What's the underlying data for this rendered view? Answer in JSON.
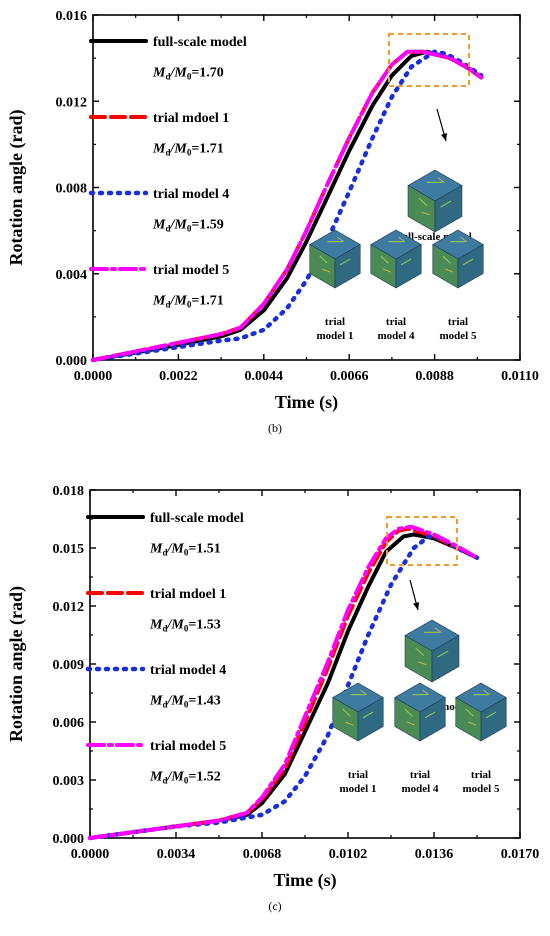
{
  "chart_data": [
    {
      "type": "line",
      "panel_label": "(b)",
      "xlabel": "Time (s)",
      "ylabel": "Rotation angle (rad)",
      "xlim": [
        0,
        0.011
      ],
      "ylim": [
        0,
        0.016
      ],
      "x_ticks": [
        "0.0000",
        "0.0022",
        "0.0044",
        "0.0066",
        "0.0088",
        "0.0110"
      ],
      "y_ticks": [
        "0.000",
        "0.004",
        "0.008",
        "0.012",
        "0.016"
      ],
      "series": [
        {
          "name": "full-scale model",
          "ratio_prefix": "M",
          "ratio_mid": "/M",
          "ratio_value": "=1.70",
          "color": "#000000",
          "style": "solid",
          "x": [
            0,
            0.0011,
            0.0022,
            0.0033,
            0.0038,
            0.0044,
            0.005,
            0.0055,
            0.006,
            0.0066,
            0.0072,
            0.0077,
            0.0082,
            0.0086,
            0.0092,
            0.0097,
            0.01
          ],
          "y": [
            0,
            0.00035,
            0.0007,
            0.0011,
            0.0014,
            0.0023,
            0.0038,
            0.0055,
            0.0074,
            0.0097,
            0.0118,
            0.0132,
            0.0141,
            0.0143,
            0.014,
            0.0135,
            0.0131
          ]
        },
        {
          "name": "trial mdoel 1",
          "ratio_prefix": "M",
          "ratio_mid": "/M",
          "ratio_value": "=1.71",
          "color": "#ff0000",
          "style": "dash",
          "x": [
            0,
            0.0011,
            0.0022,
            0.0033,
            0.0038,
            0.0044,
            0.005,
            0.0055,
            0.006,
            0.0066,
            0.0072,
            0.0077,
            0.0081,
            0.0085,
            0.0092,
            0.0097,
            0.01
          ],
          "y": [
            0,
            0.0004,
            0.0008,
            0.0012,
            0.0015,
            0.0026,
            0.0042,
            0.006,
            0.008,
            0.0103,
            0.0124,
            0.0137,
            0.0143,
            0.0143,
            0.014,
            0.0135,
            0.0131
          ]
        },
        {
          "name": "trial model 4",
          "ratio_prefix": "M",
          "ratio_mid": "/M",
          "ratio_value": "=1.59",
          "color": "#1a2fd9",
          "style": "dot",
          "x": [
            0,
            0.0011,
            0.0022,
            0.0033,
            0.0038,
            0.0044,
            0.005,
            0.0055,
            0.006,
            0.0066,
            0.0072,
            0.0077,
            0.0082,
            0.0088,
            0.0091,
            0.0095,
            0.01
          ],
          "y": [
            0,
            0.0003,
            0.0006,
            0.0009,
            0.001,
            0.0014,
            0.0024,
            0.0037,
            0.0054,
            0.0078,
            0.0103,
            0.0122,
            0.0136,
            0.0143,
            0.0142,
            0.0138,
            0.0132
          ]
        },
        {
          "name": "trial model 5",
          "ratio_prefix": "M",
          "ratio_mid": "/M",
          "ratio_value": "=1.71",
          "color": "#ff00ff",
          "style": "dashdot",
          "x": [
            0,
            0.0011,
            0.0022,
            0.0033,
            0.0038,
            0.0044,
            0.005,
            0.0055,
            0.006,
            0.0066,
            0.0072,
            0.0077,
            0.0081,
            0.0085,
            0.0092,
            0.0097,
            0.01
          ],
          "y": [
            0,
            0.0004,
            0.0008,
            0.0012,
            0.0015,
            0.0026,
            0.0042,
            0.006,
            0.008,
            0.0103,
            0.0124,
            0.0137,
            0.0143,
            0.0143,
            0.014,
            0.0135,
            0.0131
          ]
        }
      ],
      "inset_labels": {
        "full": "full-scale model",
        "trial1": [
          "trial",
          "model 1"
        ],
        "trial4": [
          "trial",
          "model 4"
        ],
        "trial5": [
          "trial",
          "model 5"
        ]
      }
    },
    {
      "type": "line",
      "panel_label": "(c)",
      "xlabel": "Time (s)",
      "ylabel": "Rotation angle (rad)",
      "xlim": [
        0,
        0.017
      ],
      "ylim": [
        0,
        0.018
      ],
      "x_ticks": [
        "0.0000",
        "0.0034",
        "0.0068",
        "0.0102",
        "0.0136",
        "0.0170"
      ],
      "y_ticks": [
        "0.000",
        "0.003",
        "0.006",
        "0.009",
        "0.012",
        "0.015",
        "0.018"
      ],
      "series": [
        {
          "name": "full-scale model",
          "ratio_prefix": "M",
          "ratio_mid": "/M",
          "ratio_value": "=1.51",
          "color": "#000000",
          "style": "solid",
          "x": [
            0,
            0.0017,
            0.0034,
            0.0051,
            0.0062,
            0.0068,
            0.0077,
            0.0085,
            0.0094,
            0.0102,
            0.011,
            0.0117,
            0.0124,
            0.0128,
            0.0136,
            0.0145,
            0.0153
          ],
          "y": [
            0,
            0.0003,
            0.0006,
            0.0009,
            0.0012,
            0.0018,
            0.0033,
            0.0055,
            0.008,
            0.0107,
            0.013,
            0.0148,
            0.0156,
            0.0157,
            0.0155,
            0.015,
            0.0145
          ]
        },
        {
          "name": "trial mdoel 1",
          "ratio_prefix": "M",
          "ratio_mid": "/M",
          "ratio_value": "=1.53",
          "color": "#ff0000",
          "style": "dash",
          "x": [
            0,
            0.0017,
            0.0034,
            0.0051,
            0.0062,
            0.0068,
            0.0077,
            0.0085,
            0.0094,
            0.0102,
            0.011,
            0.0117,
            0.0122,
            0.0126,
            0.0136,
            0.0145,
            0.0153
          ],
          "y": [
            0,
            0.0003,
            0.0006,
            0.0009,
            0.0013,
            0.002,
            0.0036,
            0.006,
            0.0088,
            0.0115,
            0.0137,
            0.0153,
            0.0159,
            0.016,
            0.0156,
            0.015,
            0.0145
          ]
        },
        {
          "name": "trial model 4",
          "ratio_prefix": "M",
          "ratio_mid": "/M",
          "ratio_value": "=1.43",
          "color": "#1a2fd9",
          "style": "dot",
          "x": [
            0,
            0.0017,
            0.0034,
            0.0051,
            0.0068,
            0.0077,
            0.0085,
            0.0094,
            0.0102,
            0.011,
            0.0119,
            0.0128,
            0.0134,
            0.0139,
            0.0145,
            0.0153
          ],
          "y": [
            0,
            0.0003,
            0.0006,
            0.0008,
            0.0012,
            0.0019,
            0.0032,
            0.0053,
            0.0079,
            0.0105,
            0.0131,
            0.015,
            0.0156,
            0.0155,
            0.015,
            0.0145
          ]
        },
        {
          "name": "trial model 5",
          "ratio_prefix": "M",
          "ratio_mid": "/M",
          "ratio_value": "=1.52",
          "color": "#ff00ff",
          "style": "dashdot",
          "x": [
            0,
            0.0017,
            0.0034,
            0.0051,
            0.0062,
            0.0068,
            0.0077,
            0.0085,
            0.0094,
            0.0102,
            0.011,
            0.0117,
            0.0122,
            0.0127,
            0.0136,
            0.0145,
            0.0153
          ],
          "y": [
            0,
            0.0003,
            0.0006,
            0.0009,
            0.0013,
            0.0021,
            0.0038,
            0.0063,
            0.0091,
            0.0118,
            0.014,
            0.0155,
            0.016,
            0.0161,
            0.0157,
            0.0151,
            0.0145
          ]
        }
      ],
      "inset_labels": {
        "full": "full-scale model",
        "trial1": [
          "trial",
          "model 1"
        ],
        "trial4": [
          "trial",
          "model 4"
        ],
        "trial5": [
          "trial",
          "model 5"
        ]
      }
    }
  ]
}
